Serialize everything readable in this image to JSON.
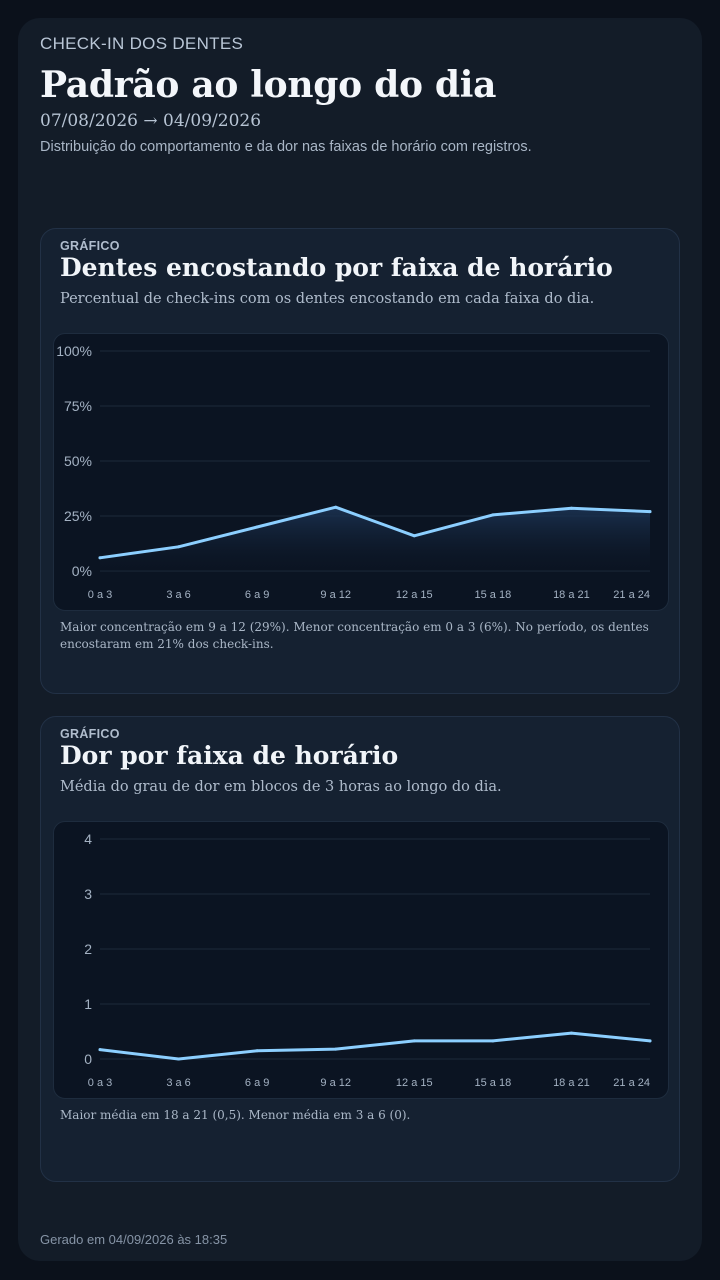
{
  "header": {
    "eyebrow": "CHECK-IN DOS DENTES",
    "title": "Padrão ao longo do dia",
    "date_range": "07/08/2026 → 04/09/2026",
    "description": "Distribuição do comportamento e da dor nas faixas de horário com registros."
  },
  "cards": [
    {
      "kicker": "GRÁFICO",
      "title": "Dentes encostando por faixa de horário",
      "subtitle": "Percentual de check-ins com os dentes encostando em cada faixa do dia.",
      "note": "Maior concentração em 9 a 12 (29%). Menor concentração em 0 a 3 (6%). No período, os dentes encostaram em 21% dos check-ins."
    },
    {
      "kicker": "GRÁFICO",
      "title": "Dor por faixa de horário",
      "subtitle": "Média do grau de dor em blocos de 3 horas ao longo do dia.",
      "note": "Maior média em 18 a 21 (0,5). Menor média em 3 a 6 (0)."
    }
  ],
  "footer": "Gerado em 04/09/2026 às 18:35",
  "colors": {
    "line": "#8ccfff",
    "grid": "#1d2a3b",
    "area_top": "#1c3454",
    "area_bottom": "#0b1422"
  },
  "chart_data": [
    {
      "type": "area",
      "categories": [
        "0 a 3",
        "3 a 6",
        "6 a 9",
        "9 a 12",
        "12 a 15",
        "15 a 18",
        "18 a 21",
        "21 a 24"
      ],
      "values": [
        6,
        11,
        20,
        29,
        16,
        25.5,
        28.5,
        27
      ],
      "yticks": [
        "0%",
        "25%",
        "50%",
        "75%",
        "100%"
      ],
      "ylim": [
        0,
        100
      ],
      "grid": true
    },
    {
      "type": "line",
      "categories": [
        "0 a 3",
        "3 a 6",
        "6 a 9",
        "9 a 12",
        "12 a 15",
        "15 a 18",
        "18 a 21",
        "21 a 24"
      ],
      "values": [
        0.17,
        0.0,
        0.15,
        0.18,
        0.33,
        0.33,
        0.47,
        0.33
      ],
      "yticks": [
        "0",
        "1",
        "2",
        "3",
        "4"
      ],
      "ylim": [
        0,
        4
      ],
      "grid": true
    }
  ]
}
